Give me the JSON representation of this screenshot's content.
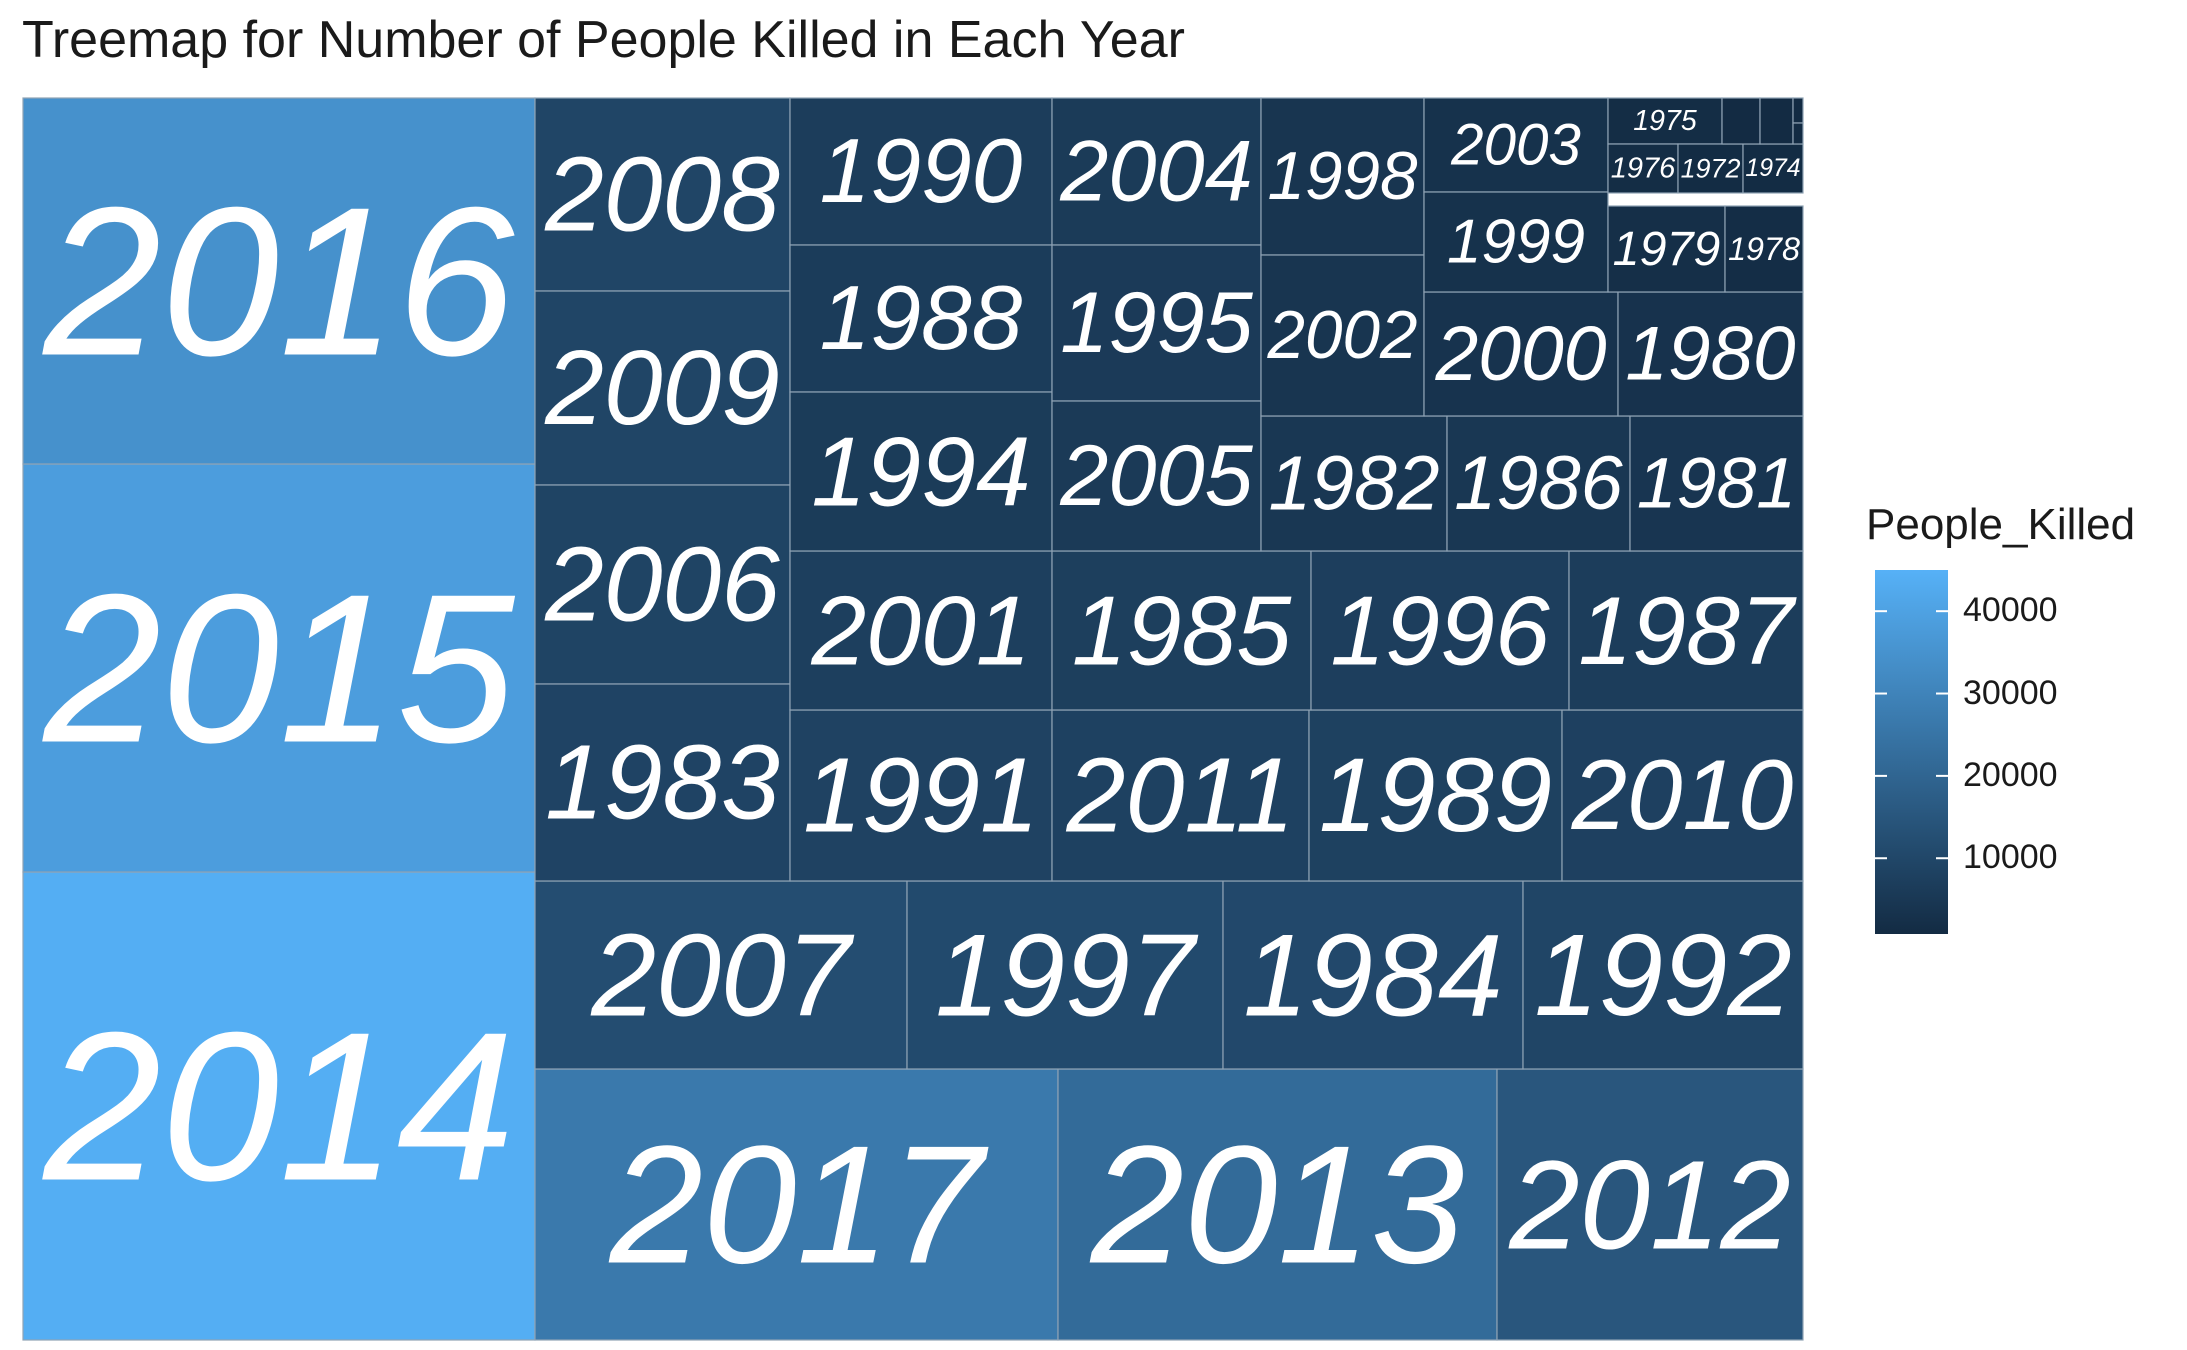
{
  "chart_data": {
    "type": "treemap",
    "title": "Treemap for Number of People Killed in Each Year",
    "value_name": "People_Killed",
    "legend": {
      "title": "People_Killed",
      "placement": "right",
      "ticks": [
        "40000",
        "30000",
        "20000",
        "10000"
      ],
      "tick_values": [
        40000,
        30000,
        20000,
        10000
      ],
      "range": [
        800,
        45000
      ],
      "color_low": "#132B43",
      "color_high": "#56B1F7"
    },
    "tiles": [
      {
        "year": "2014",
        "value": 44000
      },
      {
        "year": "2015",
        "value": 38500
      },
      {
        "year": "2016",
        "value": 34500
      },
      {
        "year": "2017",
        "value": 26500
      },
      {
        "year": "2013",
        "value": 22000
      },
      {
        "year": "2012",
        "value": 15000
      },
      {
        "year": "2007",
        "value": 12000
      },
      {
        "year": "1997",
        "value": 11000
      },
      {
        "year": "1984",
        "value": 10500
      },
      {
        "year": "1992",
        "value": 9500
      },
      {
        "year": "2008",
        "value": 9500
      },
      {
        "year": "2009",
        "value": 9300
      },
      {
        "year": "2006",
        "value": 9000
      },
      {
        "year": "1983",
        "value": 8800
      },
      {
        "year": "1991",
        "value": 8500
      },
      {
        "year": "2011",
        "value": 8200
      },
      {
        "year": "1989",
        "value": 8000
      },
      {
        "year": "2010",
        "value": 7800
      },
      {
        "year": "2001",
        "value": 7500
      },
      {
        "year": "1985",
        "value": 7300
      },
      {
        "year": "1996",
        "value": 7100
      },
      {
        "year": "1987",
        "value": 6800
      },
      {
        "year": "1990",
        "value": 6600
      },
      {
        "year": "1988",
        "value": 6400
      },
      {
        "year": "1994",
        "value": 6300
      },
      {
        "year": "2004",
        "value": 6000
      },
      {
        "year": "1995",
        "value": 5900
      },
      {
        "year": "2005",
        "value": 5800
      },
      {
        "year": "1982",
        "value": 4800
      },
      {
        "year": "1986",
        "value": 4700
      },
      {
        "year": "1981",
        "value": 4200
      },
      {
        "year": "1998",
        "value": 4100
      },
      {
        "year": "2002",
        "value": 4000
      },
      {
        "year": "2000",
        "value": 3500
      },
      {
        "year": "1980",
        "value": 3200
      },
      {
        "year": "2003",
        "value": 3100
      },
      {
        "year": "1999",
        "value": 3000
      },
      {
        "year": "1979",
        "value": 2100
      },
      {
        "year": "1978",
        "value": 1500
      },
      {
        "year": "1975",
        "value": 1400
      },
      {
        "year": "1976",
        "value": 1300
      },
      {
        "year": "1972",
        "value": 1100
      },
      {
        "year": "1974",
        "value": 1050
      },
      {
        "year": "",
        "value": 900
      },
      {
        "year": "",
        "value": 850
      },
      {
        "year": "",
        "value": 820
      },
      {
        "year": "",
        "value": 800
      }
    ]
  }
}
